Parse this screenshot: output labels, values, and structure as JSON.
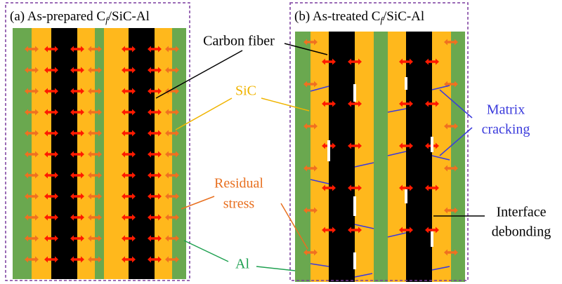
{
  "panels": [
    {
      "title": {
        "prefix": "(a) As-prepared C",
        "subscript": "f",
        "suffix": "/SiC-Al"
      }
    },
    {
      "title": {
        "prefix": "(b) As-treated C",
        "subscript": "f",
        "suffix": "/SiC-Al"
      }
    }
  ],
  "labels": {
    "carbon_fiber": "Carbon fiber",
    "sic": "SiC",
    "matrix_cracking": [
      "Matrix",
      "cracking"
    ],
    "residual_stress": [
      "Residual",
      "stress"
    ],
    "interface_debonding": [
      "Interface",
      "debonding"
    ],
    "al": "Al"
  }
}
